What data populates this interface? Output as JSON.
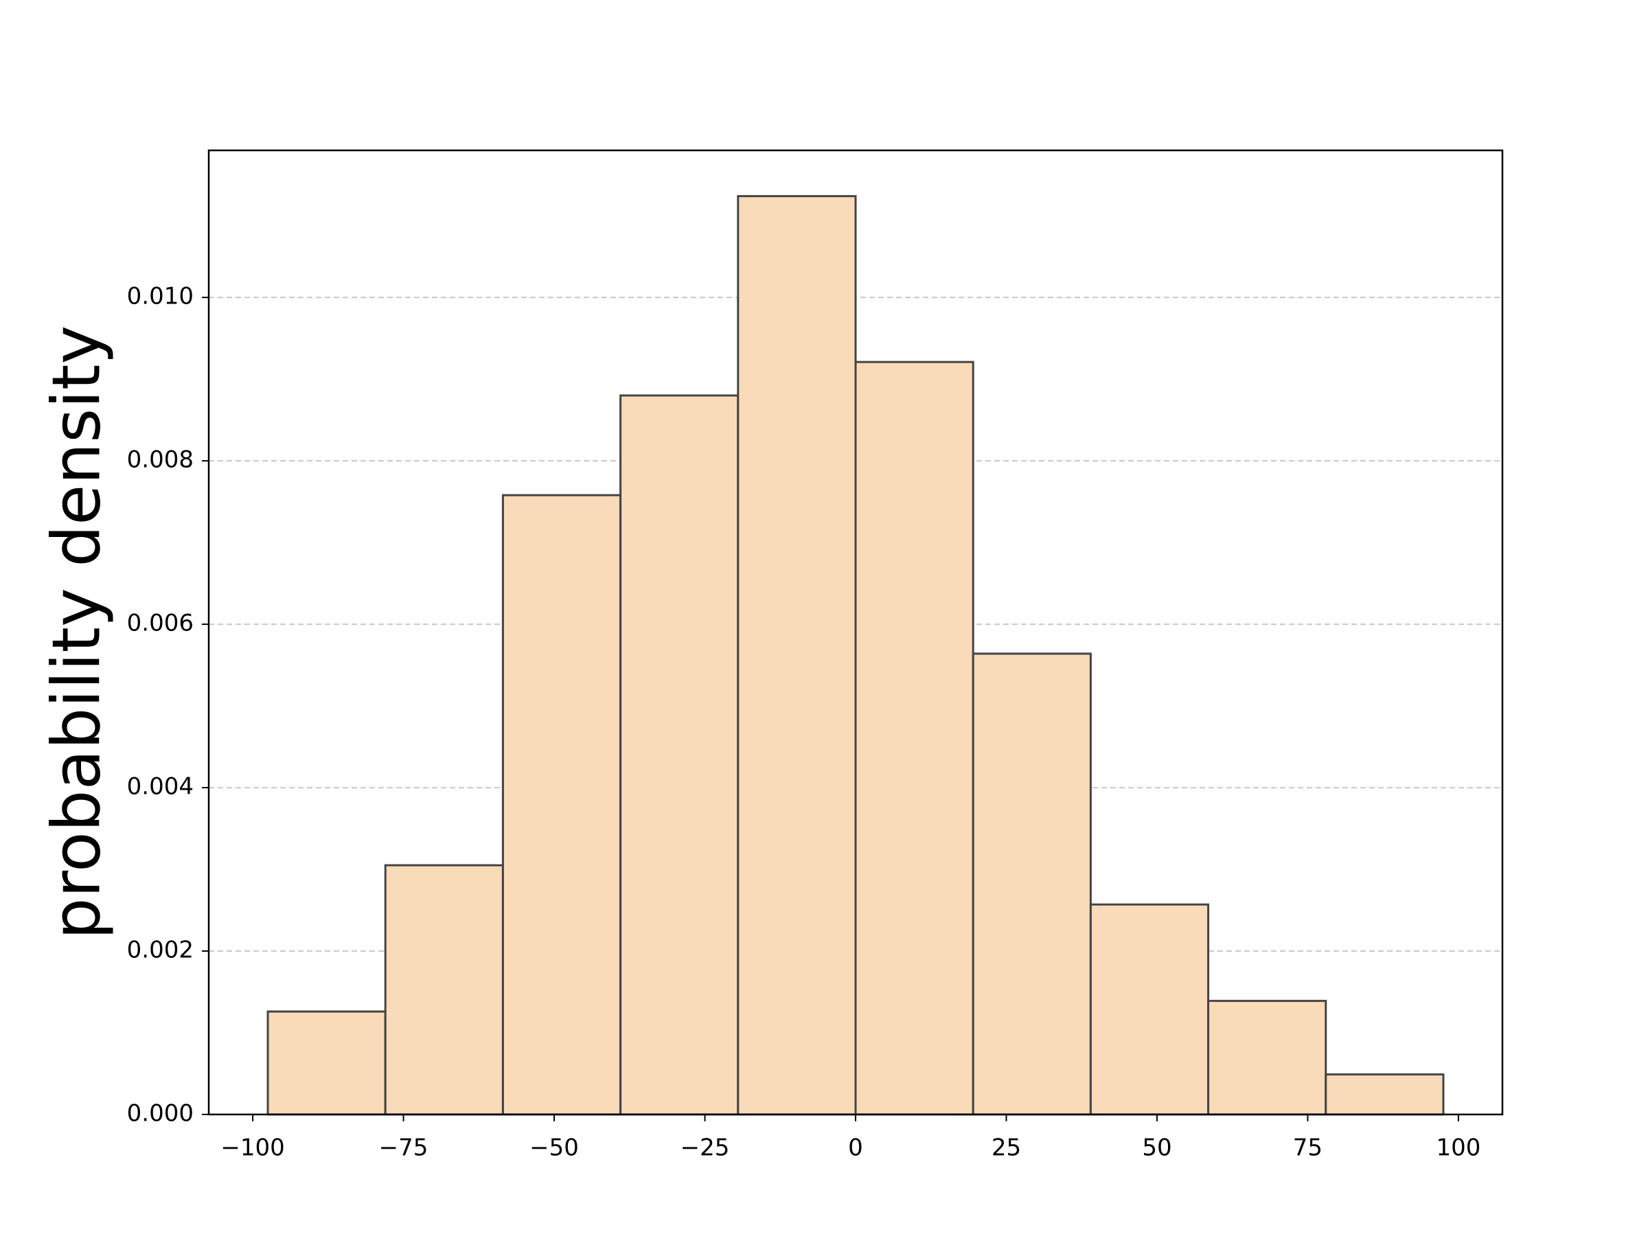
{
  "chart_data": {
    "type": "histogram",
    "ylabel": "probability density",
    "bins": [
      -97.5,
      -78.0,
      -58.5,
      -39.0,
      -19.5,
      0,
      19.5,
      39.0,
      58.5,
      78.0,
      97.5
    ],
    "values": [
      0.00126,
      0.00305,
      0.00758,
      0.0088,
      0.01124,
      0.00921,
      0.00564,
      0.00257,
      0.00139,
      0.00049
    ],
    "color": "#f9dab9",
    "edgecolor": "#444444",
    "xlim": [
      -107.3,
      107.3
    ],
    "xticks": [
      {
        "value": -100,
        "label": "−100"
      },
      {
        "value": -75,
        "label": "−75"
      },
      {
        "value": -50,
        "label": "−50"
      },
      {
        "value": -25,
        "label": "−25"
      },
      0,
      25,
      50,
      75,
      100
    ],
    "ylim": [
      0,
      0.0118
    ],
    "yticks": [
      {
        "value": 0,
        "label": "0.000"
      },
      {
        "value": 0.002,
        "label": "0.002"
      },
      {
        "value": 0.004,
        "label": "0.004"
      },
      {
        "value": 0.006,
        "label": "0.006"
      },
      {
        "value": 0.008,
        "label": "0.008"
      },
      {
        "value": 0.01,
        "label": "0.010"
      }
    ],
    "grid": true
  }
}
